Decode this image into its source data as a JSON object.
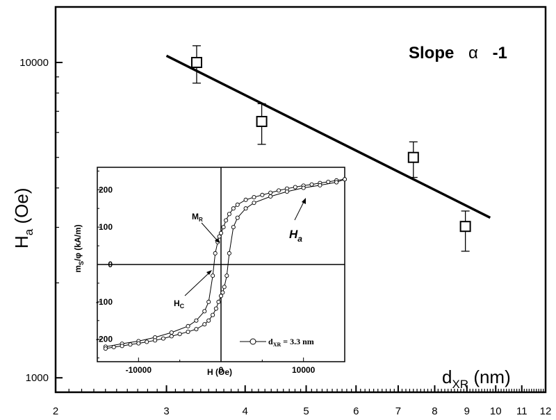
{
  "chart_data": [
    {
      "type": "scatter",
      "x_scale": "log",
      "y_scale": "log",
      "xlim": [
        2,
        12
      ],
      "ylim": [
        900,
        15000
      ],
      "x_major_ticks": [
        2,
        3,
        4,
        5,
        6,
        7,
        8,
        9,
        10,
        11,
        12
      ],
      "x_tick_labels": [
        "2",
        "3",
        "4",
        "5",
        "6",
        "7",
        "8",
        "9",
        "10",
        "11",
        "12"
      ],
      "y_major_ticks": [
        1000,
        10000
      ],
      "y_tick_labels": [
        "1000",
        "10000"
      ],
      "xlabel": {
        "main": "d",
        "sub": "XR",
        "unit": " (nm)"
      },
      "ylabel": {
        "main": "H",
        "sub": "a",
        "unit": " (Oe)"
      },
      "annotation": {
        "prefix": "Slope",
        "symbol": "α",
        "value": "-1"
      },
      "series": [
        {
          "marker": "open-square",
          "x": [
            3.35,
            4.25,
            7.4,
            8.95
          ],
          "y": [
            10000,
            6500,
            5000,
            3020
          ],
          "y_err_low": [
            8600,
            5500,
            4320,
            2520
          ],
          "y_err_high": [
            11300,
            7400,
            5600,
            3380
          ]
        }
      ],
      "fit_line": {
        "x": [
          3.0,
          9.8
        ],
        "y": [
          10500,
          3220
        ]
      },
      "grid": false
    },
    {
      "type": "line",
      "xlim": [
        -15000,
        15000
      ],
      "ylim": [
        -260,
        260
      ],
      "x_major_ticks": [
        -10000,
        0,
        10000
      ],
      "x_tick_labels": [
        "-10000",
        "0",
        "10000"
      ],
      "y_major_ticks": [
        -200,
        -100,
        0,
        100,
        200
      ],
      "y_tick_labels": [
        "-200",
        "-100",
        "0",
        "100",
        "200"
      ],
      "xlabel": "H (Oe)",
      "ylabel": {
        "prefix": "m",
        "sub": "S",
        "suffix": "/φ (kA/m)"
      },
      "annotations": {
        "mr": {
          "main": "M",
          "sub": "R"
        },
        "hc": {
          "main": "H",
          "sub": "C"
        },
        "ha": {
          "main": "H",
          "sub": "a"
        }
      },
      "legend": {
        "label": "d",
        "sub": "XR",
        "suffix": " = 3.3 nm",
        "position": "bottom-right",
        "marker": "open-circle"
      },
      "series": [
        {
          "name": "upper branch",
          "x": [
            -14000,
            -12000,
            -10000,
            -8000,
            -6000,
            -4000,
            -3000,
            -2000,
            -1500,
            -1000,
            -700,
            -400,
            -200,
            0,
            300,
            600,
            1000,
            1500,
            2000,
            3000,
            4000,
            5000,
            6000,
            7000,
            8000,
            9000,
            10000,
            11000,
            12000,
            13000,
            14000,
            15000
          ],
          "y": [
            -220,
            -212,
            -205,
            -195,
            -182,
            -165,
            -150,
            -125,
            -100,
            -30,
            30,
            60,
            75,
            84,
            100,
            118,
            135,
            150,
            160,
            173,
            180,
            186,
            192,
            198,
            203,
            207,
            211,
            214,
            218,
            221,
            225,
            228
          ]
        },
        {
          "name": "lower branch",
          "x": [
            15000,
            14000,
            12000,
            10000,
            8000,
            6000,
            4000,
            3000,
            2000,
            1500,
            1000,
            700,
            400,
            200,
            0,
            -300,
            -600,
            -1000,
            -1500,
            -2000,
            -3000,
            -4000,
            -5000,
            -6000,
            -7000,
            -8000,
            -9000,
            -10000,
            -11000,
            -12000,
            -13000,
            -14000
          ],
          "y": [
            228,
            220,
            212,
            205,
            195,
            182,
            165,
            150,
            125,
            100,
            30,
            -30,
            -60,
            -75,
            -84,
            -100,
            -118,
            -135,
            -150,
            -160,
            -173,
            -180,
            -186,
            -192,
            -198,
            -203,
            -207,
            -211,
            -214,
            -218,
            -221,
            -225
          ]
        }
      ]
    }
  ]
}
